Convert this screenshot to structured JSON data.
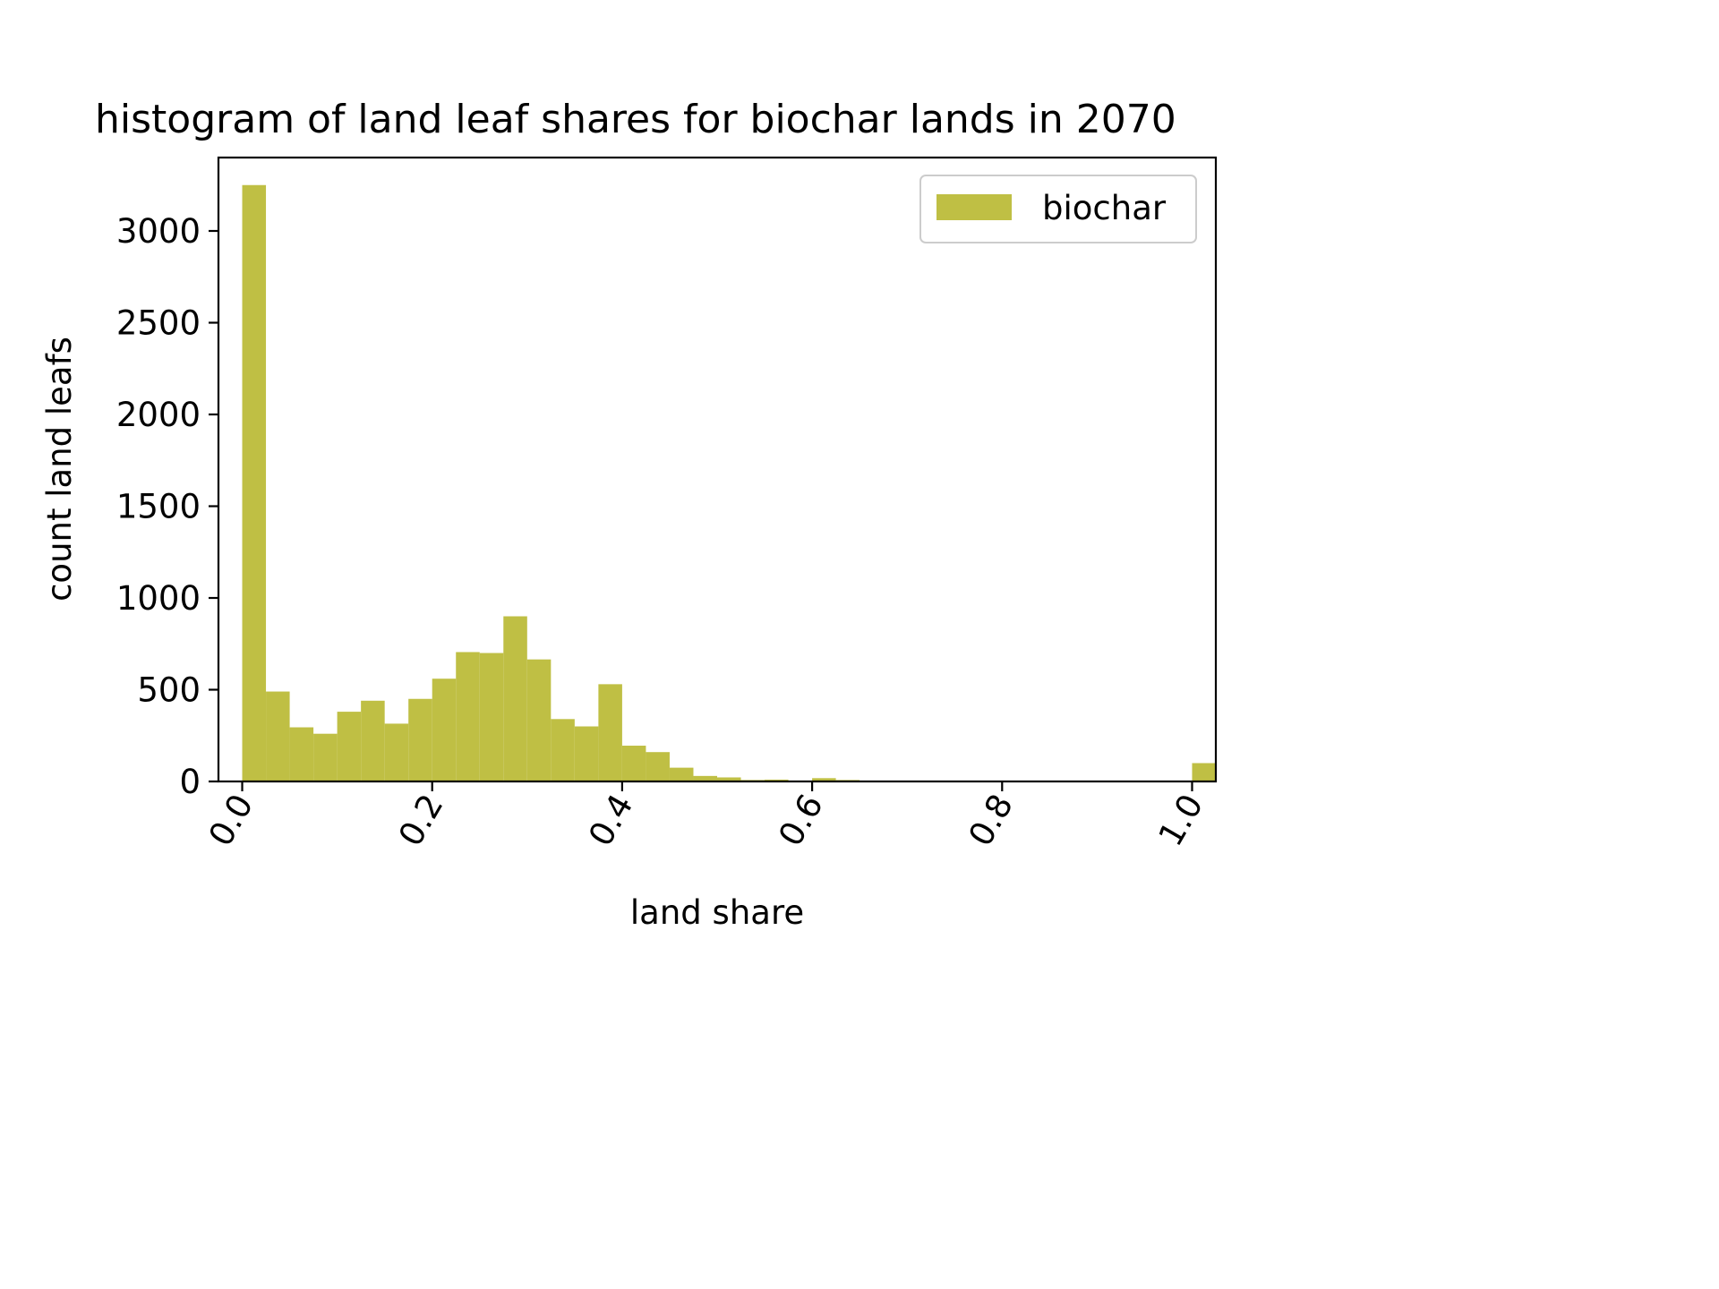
{
  "chart_data": {
    "type": "bar",
    "title": "histogram of land leaf shares for biochar lands in 2070",
    "xlabel": "land share",
    "ylabel": "count land leafs",
    "xlim": [
      -0.025,
      1.025
    ],
    "ylim": [
      0,
      3400
    ],
    "x_ticks": [
      0.0,
      0.2,
      0.4,
      0.6,
      0.8,
      1.0
    ],
    "x_tick_labels": [
      "0.0",
      "0.2",
      "0.4",
      "0.6",
      "0.8",
      "1.0"
    ],
    "y_ticks": [
      0,
      500,
      1000,
      1500,
      2000,
      2500,
      3000
    ],
    "y_tick_labels": [
      "0",
      "500",
      "1000",
      "1500",
      "2000",
      "2500",
      "3000"
    ],
    "bin_width": 0.025,
    "bin_edges_start": [
      0.0,
      0.025,
      0.05,
      0.075,
      0.1,
      0.125,
      0.15,
      0.175,
      0.2,
      0.225,
      0.25,
      0.275,
      0.3,
      0.325,
      0.35,
      0.375,
      0.4,
      0.425,
      0.45,
      0.475,
      0.5,
      0.525,
      0.55,
      0.575,
      0.6,
      0.625,
      0.65,
      0.675,
      0.7,
      0.725,
      0.75,
      0.775,
      0.8,
      0.825,
      0.85,
      0.875,
      0.9,
      0.925,
      0.95,
      0.975,
      1.0
    ],
    "series": [
      {
        "name": "biochar",
        "color": "#bfbf44",
        "values": [
          3250,
          490,
          295,
          260,
          380,
          440,
          315,
          450,
          560,
          705,
          700,
          900,
          665,
          340,
          300,
          530,
          195,
          160,
          75,
          30,
          22,
          8,
          10,
          5,
          18,
          8,
          3,
          2,
          1,
          1,
          1,
          1,
          1,
          1,
          1,
          1,
          1,
          1,
          1,
          1,
          100
        ]
      }
    ],
    "legend": {
      "position": "top-right",
      "entries": [
        "biochar"
      ]
    },
    "grid": false
  }
}
